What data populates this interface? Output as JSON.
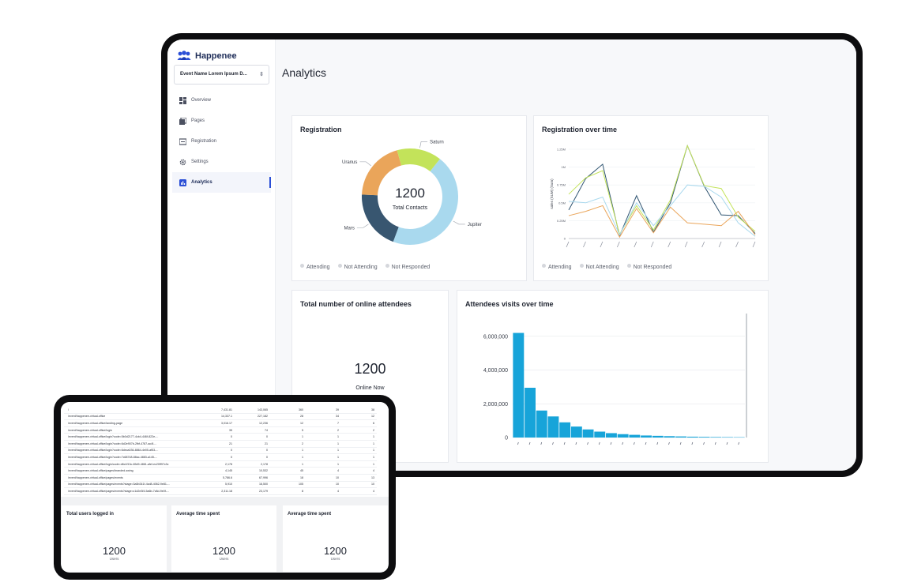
{
  "app": {
    "brand": "Happenee",
    "event_selector": "Event Name Lorem Ipsum D...",
    "page_title": "Analytics",
    "nav": [
      {
        "label": "Overview",
        "icon": "overview-icon"
      },
      {
        "label": "Pages",
        "icon": "pages-icon"
      },
      {
        "label": "Registration",
        "icon": "registration-icon"
      },
      {
        "label": "Settings",
        "icon": "gear-icon"
      },
      {
        "label": "Analytics",
        "icon": "analytics-icon",
        "active": true
      }
    ]
  },
  "colors": {
    "accent": "#2b4fd6",
    "bar": "#17a4d9",
    "jupiter": "#a9d9ee",
    "mars": "#385670",
    "uranus": "#eaa55a",
    "saturn": "#c3e35a"
  },
  "legend": [
    "Attending",
    "Not Attending",
    "Not Responded"
  ],
  "registration": {
    "title": "Registration",
    "center_value": "1200",
    "center_label": "Total Contacts"
  },
  "registration_over_time": {
    "title": "Registration over time"
  },
  "online_attendees": {
    "title": "Total number of online attendees",
    "value": "1200",
    "label": "Online Now"
  },
  "visits_over_time": {
    "title": "Attendees visits over time"
  },
  "chart_data": [
    {
      "type": "pie",
      "title": "Registration",
      "categories": [
        "Jupiter",
        "Mars",
        "Uranus",
        "Saturn"
      ],
      "values": [
        45,
        20,
        20,
        15
      ]
    },
    {
      "type": "line",
      "title": "Registration over time",
      "ylabel": "sales (SUM) (Sum)",
      "y_ticks": [
        "0",
        "0.25M",
        "0.5M",
        "0.75M",
        "1M",
        "1.25M"
      ],
      "ylim": [
        0,
        1.25
      ],
      "x_count": 12,
      "series": [
        {
          "color": "#2f5471",
          "values": [
            0.4,
            0.84,
            1.04,
            0.04,
            0.6,
            0.09,
            0.5,
            1.3,
            0.73,
            0.33,
            0.32,
            0.07
          ]
        },
        {
          "color": "#c3e35a",
          "values": [
            0.62,
            0.85,
            0.95,
            0.06,
            0.46,
            0.12,
            0.54,
            1.34,
            0.74,
            0.7,
            0.3,
            0.1
          ]
        },
        {
          "color": "#a9d9ee",
          "values": [
            0.52,
            0.5,
            0.58,
            0.05,
            0.5,
            0.18,
            0.46,
            0.75,
            0.73,
            0.58,
            0.22,
            0.03
          ]
        },
        {
          "color": "#eaa55a",
          "values": [
            0.32,
            0.38,
            0.46,
            0.02,
            0.42,
            0.08,
            0.44,
            0.22,
            0.2,
            0.18,
            0.38,
            0.05
          ]
        }
      ]
    },
    {
      "type": "bar",
      "title": "Attendees visits over time",
      "y_ticks": [
        "0",
        "2,000,000",
        "4,000,000",
        "6,000,000"
      ],
      "ylim": [
        0,
        6600000
      ],
      "values": [
        6200000,
        2950000,
        1600000,
        1250000,
        900000,
        650000,
        480000,
        350000,
        260000,
        200000,
        160000,
        120000,
        100000,
        80000,
        65000,
        50000,
        40000,
        30000,
        25000,
        20000
      ]
    }
  ],
  "table": {
    "rows": [
      [
        "/",
        "7,431.81",
        "143,065",
        "360",
        "39",
        "38"
      ],
      [
        "/event/happenee-virtual-office",
        "14,337.1",
        "227,182",
        "28",
        "34",
        "12"
      ],
      [
        "/event/happenee-virtual-office/landing-page",
        "3,016.17",
        "12,236",
        "12",
        "7",
        "6"
      ],
      [
        "/event/happenee-virtual-office/login",
        "35",
        "74",
        "5",
        "2",
        "2"
      ],
      [
        "/event/happenee-virtual-office/login?code=5b0d2177-4cb4-446f-822e-...",
        "0",
        "0",
        "1",
        "1",
        "1"
      ],
      [
        "/event/happenee-virtual-office/login?code=6d2e907b-2fbf-4787-ac4f-...",
        "21",
        "21",
        "2",
        "1",
        "1"
      ],
      [
        "/event/happenee-virtual-office/login?code=6deca036-8864-4e05-af53-...",
        "0",
        "0",
        "1",
        "1",
        "1"
      ],
      [
        "/event/happenee-virtual-office/login?code=7c68748-88ac-4883-a145-...",
        "0",
        "0",
        "1",
        "1",
        "1"
      ],
      [
        "/event/happenee-virtual-office/login/code=d6c1f13c-65d9-4861-afef-ec20ff97c3c",
        "2,178",
        "2,178",
        "1",
        "1",
        "1"
      ],
      [
        "/event/happenee-virtual-office/pages/branded-swing",
        "4,145",
        "10,532",
        "45",
        "4",
        "4"
      ],
      [
        "/event/happenee-virtual-office/pages/events",
        "5,786.6",
        "67,996",
        "18",
        "10",
        "13"
      ],
      [
        "/event/happenee-virtual-office/pages/events?stage=3a5b341f-4cd8-4062-9e81-...",
        "5,910",
        "16,500",
        "105",
        "10",
        "10"
      ],
      [
        "/event/happenee-virtual-office/pages/events?stage=c1d2e3f4-5a6b-7c8d-9e0f-...",
        "2,311.18",
        "23,179",
        "8",
        "4",
        "4"
      ]
    ]
  },
  "stats": [
    {
      "title": "Total users logged in",
      "value": "1200",
      "unit": "Users"
    },
    {
      "title": "Average time spent",
      "value": "1200",
      "unit": "Users"
    },
    {
      "title": "Average time spent",
      "value": "1200",
      "unit": "Users"
    }
  ]
}
